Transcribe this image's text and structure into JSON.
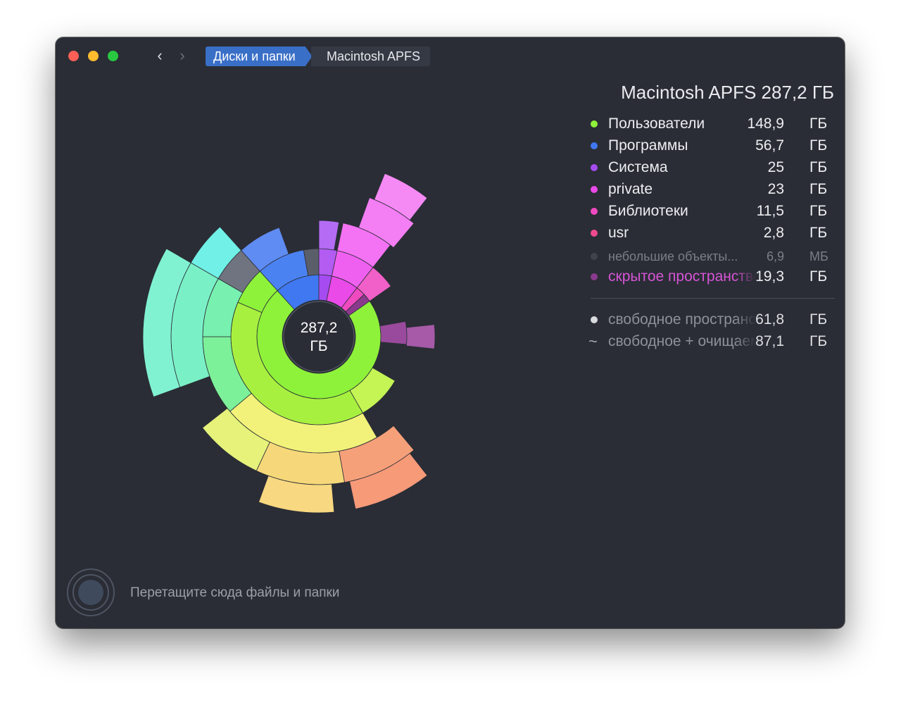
{
  "window": {
    "breadcrumb": [
      "Диски и папки",
      "Macintosh APFS"
    ]
  },
  "chart": {
    "center_value": "287,2",
    "center_unit": "ГБ"
  },
  "panel": {
    "title": "Macintosh APFS  287,2 ГБ",
    "items": [
      {
        "name": "Пользователи",
        "value": "148,9",
        "unit": "ГБ",
        "color": "#8ef23a"
      },
      {
        "name": "Программы",
        "value": "56,7",
        "unit": "ГБ",
        "color": "#3f78f0"
      },
      {
        "name": "Система",
        "value": "25",
        "unit": "ГБ",
        "color": "#a54cf0"
      },
      {
        "name": "private",
        "value": "23",
        "unit": "ГБ",
        "color": "#e94ae8"
      },
      {
        "name": "Библиотеки",
        "value": "11,5",
        "unit": "ГБ",
        "color": "#f04ac0"
      },
      {
        "name": "usr",
        "value": "2,8",
        "unit": "ГБ",
        "color": "#f04a90"
      }
    ],
    "small_objects": {
      "name": "небольшие объекты...",
      "value": "6,9",
      "unit": "МБ",
      "color": "#3f434c"
    },
    "hidden_space": {
      "name": "скрытое пространство",
      "value": "19,3",
      "unit": "ГБ",
      "color": "#8a3a8c"
    },
    "free_space": {
      "name": "свободное пространство",
      "value": "61,8",
      "unit": "ГБ",
      "color": "#d8dade"
    },
    "free_purgeable": {
      "name": "свободное + очищаемое",
      "value": "87,1",
      "unit": "ГБ",
      "symbol": "~"
    }
  },
  "drop_hint": "Перетащите сюда файлы и папки"
}
